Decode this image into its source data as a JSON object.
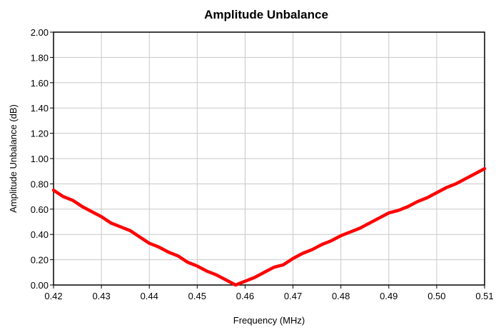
{
  "chart_data": {
    "type": "line",
    "title": "Amplitude Unbalance",
    "xlabel": "Frequency (MHz)",
    "ylabel": "Amplitude Unbalance (dB)",
    "xlim": [
      0.42,
      0.51
    ],
    "ylim": [
      0.0,
      2.0
    ],
    "x_ticks": [
      "0.42",
      "0.43",
      "0.44",
      "0.45",
      "0.46",
      "0.47",
      "0.48",
      "0.49",
      "0.50",
      "0.51"
    ],
    "y_ticks": [
      "0.00",
      "0.20",
      "0.40",
      "0.60",
      "0.80",
      "1.00",
      "1.20",
      "1.40",
      "1.60",
      "1.80",
      "2.00"
    ],
    "grid": true,
    "legend": "none",
    "series": [
      {
        "color": "#ff0000",
        "x": [
          0.42,
          0.422,
          0.424,
          0.426,
          0.428,
          0.43,
          0.432,
          0.434,
          0.436,
          0.438,
          0.44,
          0.442,
          0.444,
          0.446,
          0.448,
          0.45,
          0.452,
          0.454,
          0.456,
          0.458,
          0.46,
          0.462,
          0.464,
          0.466,
          0.468,
          0.47,
          0.472,
          0.474,
          0.476,
          0.478,
          0.48,
          0.482,
          0.484,
          0.486,
          0.488,
          0.49,
          0.492,
          0.494,
          0.496,
          0.498,
          0.5,
          0.502,
          0.504,
          0.506,
          0.508,
          0.51
        ],
        "values": [
          0.75,
          0.7,
          0.67,
          0.62,
          0.58,
          0.54,
          0.49,
          0.46,
          0.43,
          0.38,
          0.33,
          0.3,
          0.26,
          0.23,
          0.18,
          0.15,
          0.11,
          0.08,
          0.04,
          0.0,
          0.03,
          0.06,
          0.1,
          0.14,
          0.16,
          0.21,
          0.25,
          0.28,
          0.32,
          0.35,
          0.39,
          0.42,
          0.45,
          0.49,
          0.53,
          0.57,
          0.59,
          0.62,
          0.66,
          0.69,
          0.73,
          0.77,
          0.8,
          0.84,
          0.88,
          0.92
        ]
      }
    ]
  }
}
